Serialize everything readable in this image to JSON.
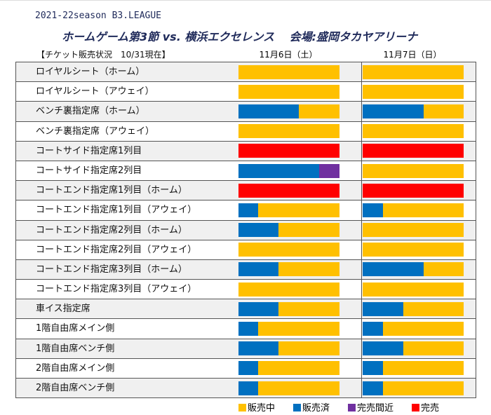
{
  "header": {
    "season": "2021-22season B3.LEAGUE",
    "title": "ホームゲーム第3節 vs. 横浜エクセレンス　 会場:盛岡タカヤアリーナ",
    "status": "【チケット販売状況　10/31現在】",
    "dates": [
      "11月6日（土）",
      "11月7日（日）"
    ]
  },
  "colors": {
    "selling": "#FFC000",
    "sold": "#0070C0",
    "almost": "#7030A0",
    "soldout": "#FF0000"
  },
  "legend": [
    {
      "key": "selling",
      "label": "販売中"
    },
    {
      "key": "sold",
      "label": "販売済"
    },
    {
      "key": "almost",
      "label": "完売間近"
    },
    {
      "key": "soldout",
      "label": "完売"
    }
  ],
  "rows": [
    {
      "name": "ロイヤルシート（ホーム）",
      "d1": {
        "sold": 0
      },
      "d2": {
        "sold": 0
      }
    },
    {
      "name": "ロイヤルシート（アウェイ）",
      "d1": {
        "sold": 0
      },
      "d2": {
        "sold": 0
      }
    },
    {
      "name": "ベンチ裏指定席（ホーム）",
      "d1": {
        "sold": 0.6
      },
      "d2": {
        "sold": 0.6
      }
    },
    {
      "name": "ベンチ裏指定席（アウェイ）",
      "d1": {
        "sold": 0
      },
      "d2": {
        "sold": 0
      }
    },
    {
      "name": "コートサイド指定席1列目",
      "d1": {
        "soldout": 1
      },
      "d2": {
        "soldout": 1
      }
    },
    {
      "name": "コートサイド指定席2列目",
      "d1": {
        "sold": 0.8,
        "almost": 0.2
      },
      "d2": {
        "sold": 0
      }
    },
    {
      "name": "コートエンド指定席1列目（ホーム）",
      "d1": {
        "soldout": 1
      },
      "d2": {
        "soldout": 1
      }
    },
    {
      "name": "コートエンド指定席1列目（アウェイ）",
      "d1": {
        "sold": 0.2
      },
      "d2": {
        "sold": 0.2
      }
    },
    {
      "name": "コートエンド指定席2列目（ホーム）",
      "d1": {
        "sold": 0.4
      },
      "d2": {
        "sold": 0
      }
    },
    {
      "name": "コートエンド指定席2列目（アウェイ）",
      "d1": {
        "sold": 0
      },
      "d2": {
        "sold": 0
      }
    },
    {
      "name": "コートエンド指定席3列目（ホーム）",
      "d1": {
        "sold": 0.4
      },
      "d2": {
        "sold": 0.6
      }
    },
    {
      "name": "コートエンド指定席3列目（アウェイ）",
      "d1": {
        "sold": 0
      },
      "d2": {
        "sold": 0
      }
    },
    {
      "name": "車イス指定席",
      "d1": {
        "sold": 0.4
      },
      "d2": {
        "sold": 0.4
      }
    },
    {
      "name": "1階自由席メイン側",
      "d1": {
        "sold": 0.2
      },
      "d2": {
        "sold": 0.2
      }
    },
    {
      "name": "1階自由席ベンチ側",
      "d1": {
        "sold": 0.4
      },
      "d2": {
        "sold": 0.4
      }
    },
    {
      "name": "2階自由席メイン側",
      "d1": {
        "sold": 0.2
      },
      "d2": {
        "sold": 0.2
      }
    },
    {
      "name": "2階自由席ベンチ側",
      "d1": {
        "sold": 0.2
      },
      "d2": {
        "sold": 0.2
      }
    }
  ]
}
